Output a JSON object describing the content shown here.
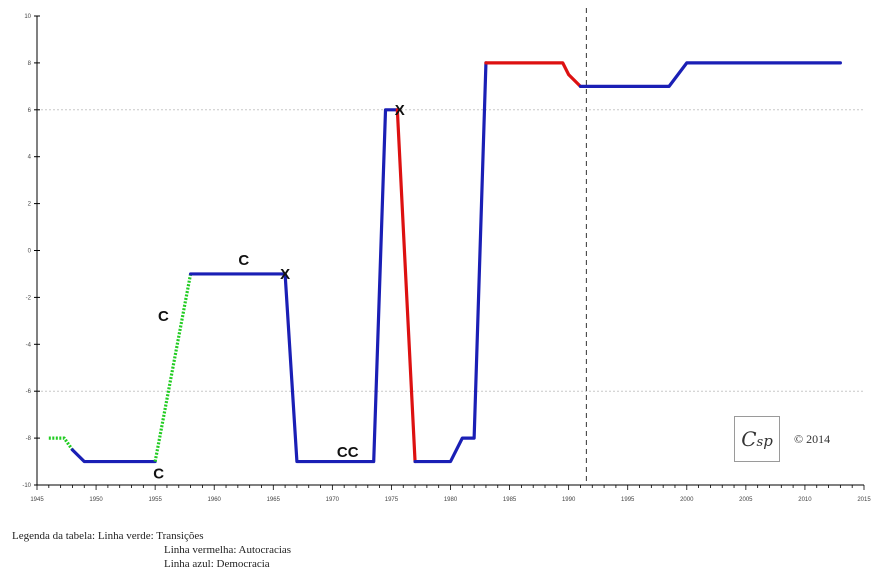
{
  "chart_data": {
    "type": "line",
    "title": "",
    "xlabel": "",
    "ylabel": "",
    "xlim": [
      1945,
      2015
    ],
    "ylim": [
      -10,
      10
    ],
    "x_ticks": [
      1945,
      1950,
      1955,
      1960,
      1965,
      1970,
      1975,
      1980,
      1985,
      1990,
      1995,
      2000,
      2005,
      2010,
      2015
    ],
    "y_ticks": [
      -10,
      -8,
      -6,
      -4,
      -2,
      0,
      2,
      4,
      6,
      8,
      10
    ],
    "grid": "horizontal dotted lines at y=6 and y=-6",
    "vertical_marker_x": 1991.5,
    "series": [
      {
        "color": "#22cc22",
        "style": "dotted",
        "points": [
          [
            1946,
            -8
          ],
          [
            1947.3,
            -8
          ],
          [
            1948,
            -8.5
          ]
        ]
      },
      {
        "color": "#1a1fb5",
        "style": "solid",
        "points": [
          [
            1948,
            -8.5
          ],
          [
            1949,
            -9
          ],
          [
            1955,
            -9
          ]
        ]
      },
      {
        "color": "#22cc22",
        "style": "dotted",
        "points": [
          [
            1955,
            -9
          ],
          [
            1958,
            -1
          ]
        ]
      },
      {
        "color": "#1a1fb5",
        "style": "solid",
        "points": [
          [
            1958,
            -1
          ],
          [
            1966,
            -1
          ],
          [
            1967,
            -9
          ],
          [
            1973.5,
            -9
          ],
          [
            1974.5,
            6
          ],
          [
            1975.5,
            6
          ]
        ]
      },
      {
        "color": "#dd1111",
        "style": "solid",
        "points": [
          [
            1975.5,
            6
          ],
          [
            1977,
            -9
          ]
        ]
      },
      {
        "color": "#1a1fb5",
        "style": "solid",
        "points": [
          [
            1977,
            -9
          ],
          [
            1980,
            -9
          ],
          [
            1981,
            -8
          ],
          [
            1982,
            -8
          ],
          [
            1983,
            8
          ]
        ]
      },
      {
        "color": "#dd1111",
        "style": "solid",
        "points": [
          [
            1983,
            8
          ],
          [
            1989.5,
            8
          ],
          [
            1990,
            7.5
          ],
          [
            1991,
            7
          ]
        ]
      },
      {
        "color": "#1a1fb5",
        "style": "solid",
        "points": [
          [
            1991,
            7
          ],
          [
            1998.5,
            7
          ],
          [
            2000,
            8
          ],
          [
            2013,
            8
          ]
        ]
      }
    ],
    "annotations": [
      {
        "text": "C",
        "x": 1955.3,
        "y": -9.5
      },
      {
        "text": "C",
        "x": 1955.7,
        "y": -2.8
      },
      {
        "text": "C",
        "x": 1962.5,
        "y": -0.4
      },
      {
        "text": "X",
        "x": 1966,
        "y": -1
      },
      {
        "text": "CC",
        "x": 1971.3,
        "y": -8.6
      },
      {
        "text": "X",
        "x": 1975.7,
        "y": 6
      }
    ]
  },
  "copyright": "© 2014",
  "logo_text": "Csp",
  "legend": {
    "line1": "Legenda da tabela: Linha verde: Transições",
    "line2": "Linha vermelha: Autocracias",
    "line3": "Linha azul: Democracia"
  }
}
